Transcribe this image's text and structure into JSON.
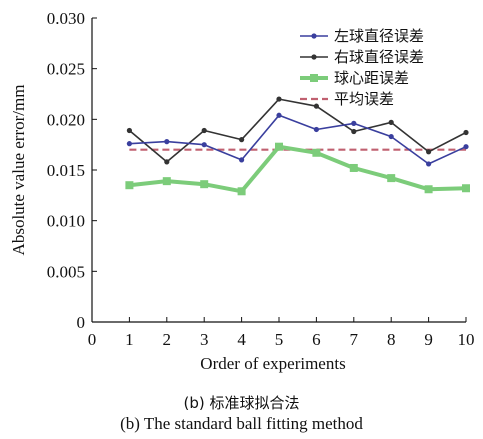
{
  "chart_data": {
    "type": "line",
    "xlabel": "Order of experiments",
    "ylabel": "Absolute value error/mm",
    "xlim": [
      0,
      10
    ],
    "ylim": [
      0,
      0.03
    ],
    "x_ticks": [
      "0",
      "1",
      "2",
      "3",
      "4",
      "5",
      "6",
      "7",
      "8",
      "9",
      "10"
    ],
    "y_ticks": [
      "0",
      "0.005",
      "0.010",
      "0.015",
      "0.020",
      "0.025",
      "0.030"
    ],
    "grid": false,
    "legend_position": "top-right",
    "x": [
      1,
      2,
      3,
      4,
      5,
      6,
      7,
      8,
      9,
      10
    ],
    "series": [
      {
        "name": "左球直径误差",
        "color": "#3a3f9e",
        "marker": "circle",
        "values": [
          0.0176,
          0.0178,
          0.0175,
          0.016,
          0.0204,
          0.019,
          0.0196,
          0.0183,
          0.0156,
          0.0173
        ]
      },
      {
        "name": "右球直径误差",
        "color": "#333333",
        "marker": "circle",
        "values": [
          0.0189,
          0.0158,
          0.0189,
          0.018,
          0.022,
          0.0213,
          0.0188,
          0.0197,
          0.0168,
          0.0187
        ]
      },
      {
        "name": "球心距误差",
        "color": "#7ccc7a",
        "marker": "square",
        "values": [
          0.0135,
          0.0139,
          0.0136,
          0.0129,
          0.0173,
          0.0167,
          0.0152,
          0.0142,
          0.0131,
          0.0132
        ]
      },
      {
        "name": "平均误差",
        "color": "#c06070",
        "marker": "none",
        "dashed": true,
        "values": [
          0.017,
          0.017,
          0.017,
          0.017,
          0.017,
          0.017,
          0.017,
          0.017,
          0.017,
          0.017
        ]
      }
    ]
  },
  "captions": {
    "cn": "(b) 标准球拟合法",
    "en": "(b) The standard ball fitting method"
  }
}
